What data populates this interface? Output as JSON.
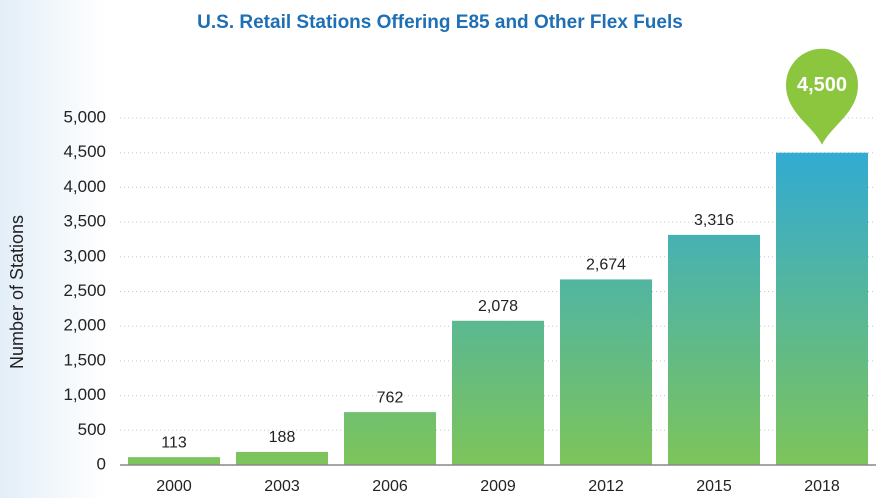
{
  "chart_data": {
    "type": "bar",
    "title": "U.S. Retail Stations Offering E85 and Other Flex Fuels",
    "y_label": "Number of Stations",
    "categories": [
      "2000",
      "2003",
      "2006",
      "2009",
      "2012",
      "2015",
      "2018"
    ],
    "values": [
      113,
      188,
      762,
      2078,
      2674,
      3316,
      4500
    ],
    "value_labels": [
      "113",
      "188",
      "762",
      "2,078",
      "2,674",
      "3,316",
      "4,500"
    ],
    "color": [
      "#7dc45a",
      "#2aa8e0"
    ],
    "ylim": [
      0,
      5000
    ],
    "yticks": [
      0,
      500,
      {
        "value": 1000,
        "label": "1,000"
      },
      {
        "value": 1500,
        "label": "1,500"
      },
      {
        "value": 2000,
        "label": "2,000"
      },
      {
        "value": 2500,
        "label": "2,500"
      },
      {
        "value": 3000,
        "label": "3,000"
      },
      {
        "value": 3500,
        "label": "3,500"
      },
      {
        "value": 4000,
        "label": "4,000"
      },
      {
        "value": 4500,
        "label": "4,500"
      },
      {
        "value": 5000,
        "label": "5,000"
      }
    ],
    "grid": true
  }
}
